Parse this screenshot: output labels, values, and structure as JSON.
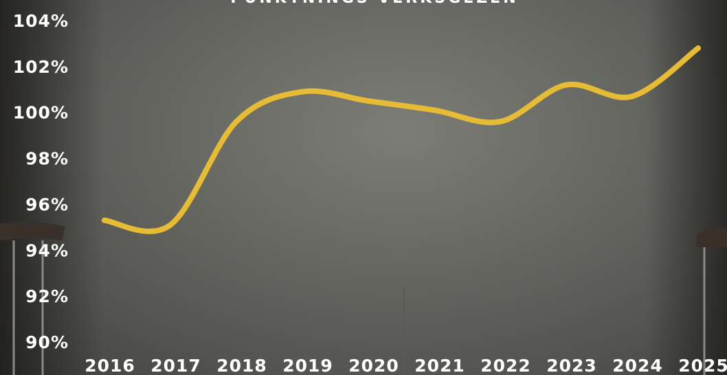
{
  "chart_data": {
    "type": "line",
    "title": "PUNKTNINGS-VERKSGEZEN",
    "xlabel": "",
    "ylabel": "",
    "x": [
      "2016",
      "2017",
      "2018",
      "2019",
      "2020",
      "2021",
      "2022",
      "2023",
      "2024",
      "2025"
    ],
    "series": [
      {
        "values": [
          95.3,
          95.1,
          99.6,
          100.9,
          100.5,
          100.1,
          99.6,
          101.2,
          100.7,
          102.8
        ]
      }
    ],
    "ylim": [
      90,
      104
    ],
    "yticks": [
      "90%",
      "92%",
      "94%",
      "96%",
      "98%",
      "100%",
      "102%",
      "104%"
    ],
    "line_color": "#e6bb36",
    "grid": false,
    "legend": "none"
  }
}
